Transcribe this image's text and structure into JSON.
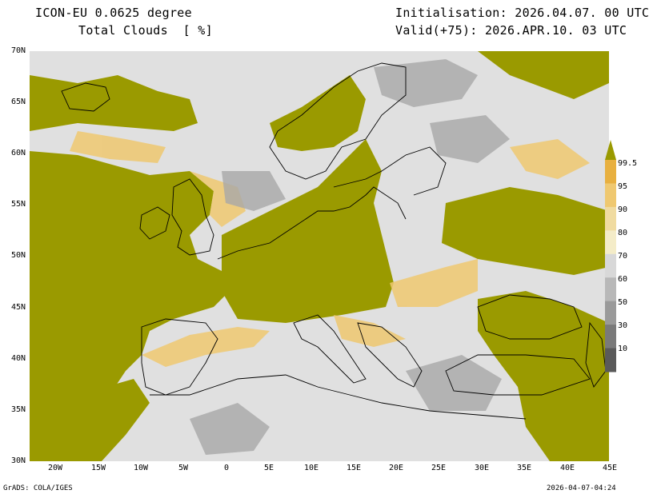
{
  "header": {
    "model": "ICON-EU 0.0625 degree",
    "variable": "Total Clouds  [ %]",
    "init": "Initialisation: 2026.04.07. 00 UTC",
    "valid": "Valid(+75): 2026.APR.10. 03 UTC"
  },
  "footer": {
    "left": "GrADS: COLA/IGES",
    "right": "2026-04-07-04:24"
  },
  "lat_labels": [
    "70N",
    "65N",
    "60N",
    "55N",
    "50N",
    "45N",
    "40N",
    "35N",
    "30N"
  ],
  "lon_labels": [
    "20W",
    "15W",
    "10W",
    "5W",
    "0",
    "5E",
    "10E",
    "15E",
    "20E",
    "25E",
    "30E",
    "35E",
    "40E",
    "45E"
  ],
  "colorbar": {
    "labels": [
      "99.5",
      "95",
      "90",
      "80",
      "70",
      "60",
      "50",
      "30",
      "10"
    ],
    "colors": [
      "#9a9a00",
      "#e8b040",
      "#efc870",
      "#f0dba0",
      "#f4ecc8",
      "#d8d8d8",
      "#b8b8b8",
      "#9a9a9a",
      "#7a7a7a",
      "#5a5a5a"
    ]
  },
  "map_colors": {
    "clear": "#e0e0e0",
    "overcast": "#9a9a00",
    "coast": "#000000"
  }
}
